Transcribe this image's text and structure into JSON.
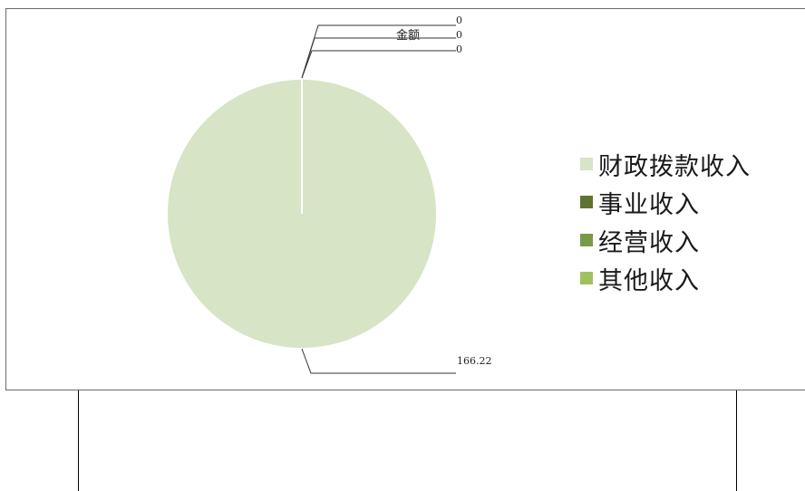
{
  "chart_data": {
    "type": "pie",
    "series_name": "金额",
    "categories": [
      "财政拨款收入",
      "事业收入",
      "经营收入",
      "其他收入"
    ],
    "values": [
      166.22,
      0,
      0,
      0
    ],
    "value_labels": [
      "166.22",
      "0",
      "0",
      "0"
    ],
    "colors": [
      "#d7e4c5",
      "#5f7433",
      "#789b46",
      "#a1c15e"
    ],
    "legend_position": "right"
  }
}
